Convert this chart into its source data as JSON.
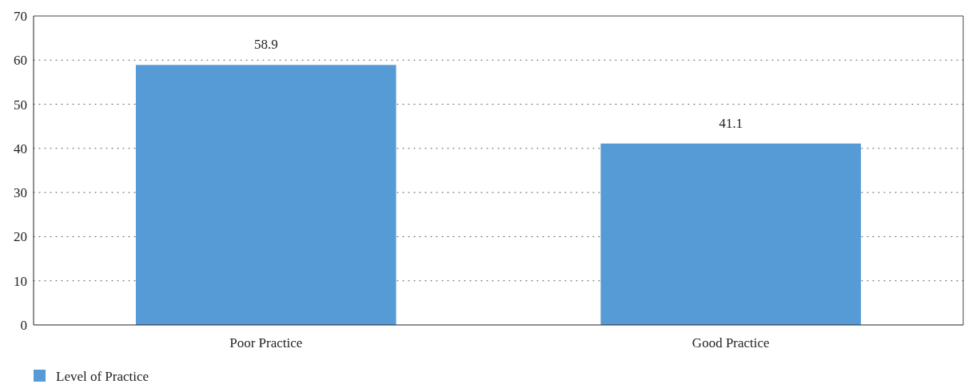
{
  "chart_data": {
    "type": "bar",
    "categories": [
      "Poor Practice",
      "Good Practice"
    ],
    "series": [
      {
        "name": "Level of Practice",
        "color": "#569bd5",
        "values": [
          58.9,
          41.1
        ]
      }
    ],
    "ylim": [
      0,
      70
    ],
    "yticks": [
      0,
      10,
      20,
      30,
      40,
      50,
      60,
      70
    ],
    "grid": "y",
    "legend": "bottom left",
    "data_labels": true
  }
}
